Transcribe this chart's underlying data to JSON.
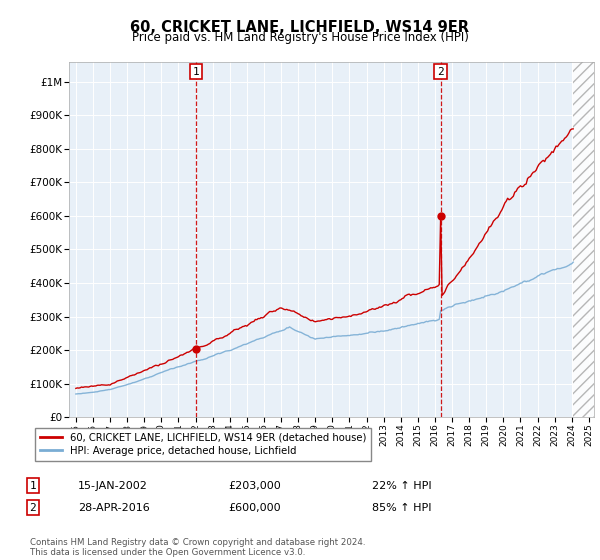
{
  "title": "60, CRICKET LANE, LICHFIELD, WS14 9ER",
  "subtitle": "Price paid vs. HM Land Registry's House Price Index (HPI)",
  "y_ticks": [
    0,
    100000,
    200000,
    300000,
    400000,
    500000,
    600000,
    700000,
    800000,
    900000,
    1000000
  ],
  "y_tick_labels": [
    "£0",
    "£100K",
    "£200K",
    "£300K",
    "£400K",
    "£500K",
    "£600K",
    "£700K",
    "£800K",
    "£900K",
    "£1M"
  ],
  "purchase1_year": 2002.04,
  "purchase1_price": 203000,
  "purchase2_year": 2016.33,
  "purchase2_price": 600000,
  "purchase1_date": "15-JAN-2002",
  "purchase1_hpi_pct": "22%",
  "purchase2_date": "28-APR-2016",
  "purchase2_hpi_pct": "85%",
  "hpi_color": "#7aadd4",
  "price_color": "#cc0000",
  "dashed_line_color": "#cc0000",
  "background_color": "#dce9f5",
  "plot_bg_color": "#e8f0f8",
  "legend_label_red": "60, CRICKET LANE, LICHFIELD, WS14 9ER (detached house)",
  "legend_label_blue": "HPI: Average price, detached house, Lichfield",
  "footer": "Contains HM Land Registry data © Crown copyright and database right 2024.\nThis data is licensed under the Open Government Licence v3.0."
}
